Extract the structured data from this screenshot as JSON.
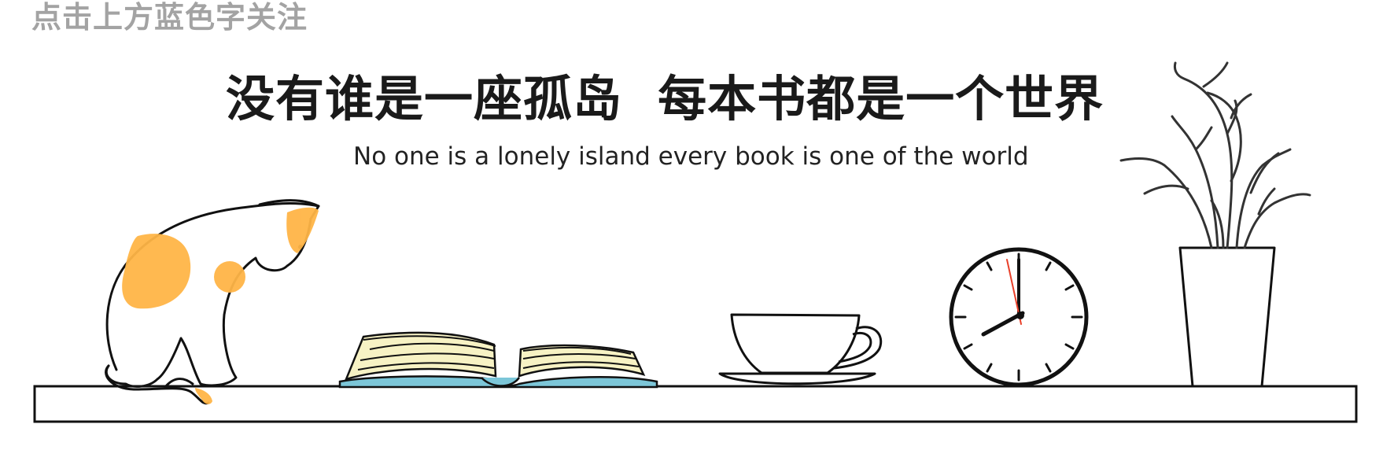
{
  "header": {
    "follow_hint": "点击上方蓝色字关注"
  },
  "banner": {
    "title_cn": "没有谁是一座孤岛  每本书都是一个世界",
    "title_en": "No one is a lonely island every book is one of the world"
  },
  "colors": {
    "cat_patch": "#ffb547",
    "book_cover": "#7cc6d8",
    "book_pages": "#f7f2c4",
    "clock_second_hand": "#e8402a",
    "line": "#111111"
  },
  "icons": [
    "cat-icon",
    "book-icon",
    "teacup-icon",
    "clock-icon",
    "vase-icon"
  ]
}
